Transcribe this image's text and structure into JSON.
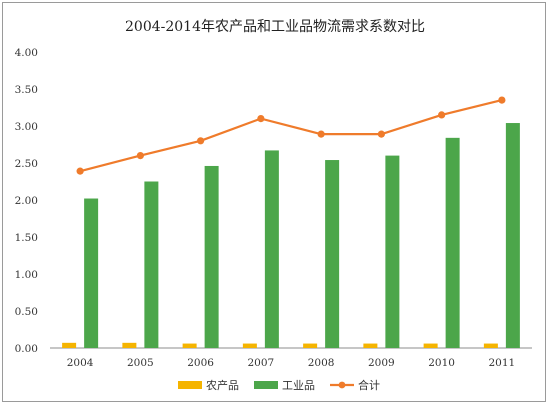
{
  "chart_data": {
    "type": "bar",
    "title": "2004-2014年农产品和工业品物流需求系数对比",
    "categories": [
      "2004",
      "2005",
      "2006",
      "2007",
      "2008",
      "2009",
      "2010",
      "2011"
    ],
    "series": [
      {
        "name": "农产品",
        "type": "bar",
        "color": "#f5b400",
        "values": [
          0.07,
          0.07,
          0.06,
          0.06,
          0.06,
          0.06,
          0.06,
          0.06
        ]
      },
      {
        "name": "工业品",
        "type": "bar",
        "color": "#4ca64a",
        "values": [
          2.02,
          2.25,
          2.46,
          2.67,
          2.54,
          2.6,
          2.84,
          3.04
        ]
      },
      {
        "name": "合计",
        "type": "line",
        "color": "#ef7b2b",
        "values": [
          2.39,
          2.6,
          2.8,
          3.1,
          2.89,
          2.89,
          3.15,
          3.35
        ]
      }
    ],
    "ylim": [
      0,
      4.0
    ],
    "yticks": [
      "0.00",
      "0.50",
      "1.00",
      "1.50",
      "2.00",
      "2.50",
      "3.00",
      "3.50",
      "4.00"
    ],
    "grid": false,
    "legend_position": "bottom"
  }
}
